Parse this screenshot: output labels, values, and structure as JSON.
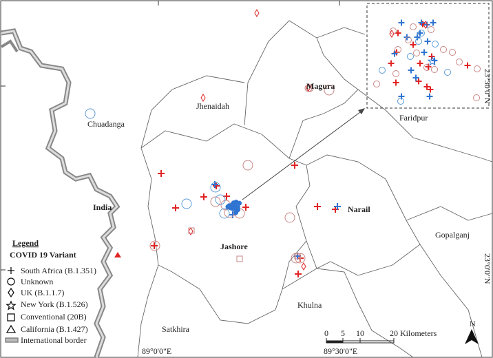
{
  "map": {
    "labels": [
      "Chuadanga",
      "Jhenaidah",
      "Magura",
      "Faridpur",
      "India",
      "Narail",
      "Jashore",
      "Gopalganj",
      "Khulna",
      "Satkhira"
    ]
  },
  "legend": {
    "title": "Legend",
    "subtitle": "COVID 19 Variant",
    "items": [
      "South Africa (B.1.351)",
      "Unknown",
      "UK (B.1.1.7)",
      "New York (B.1.526)",
      "Conventional (20B)",
      "California (B.1.427)",
      "International border"
    ]
  },
  "graticule": {
    "latitudes": [
      "23°30'0\"N",
      "23°0'0\"N"
    ],
    "longitudes": [
      "89°0'0\"E",
      "89°30'0\"E"
    ]
  },
  "scale_bar": {
    "ticks": [
      "0",
      "5",
      "10"
    ],
    "unit_label": "20 Kilometers"
  },
  "north_arrow": "N"
}
